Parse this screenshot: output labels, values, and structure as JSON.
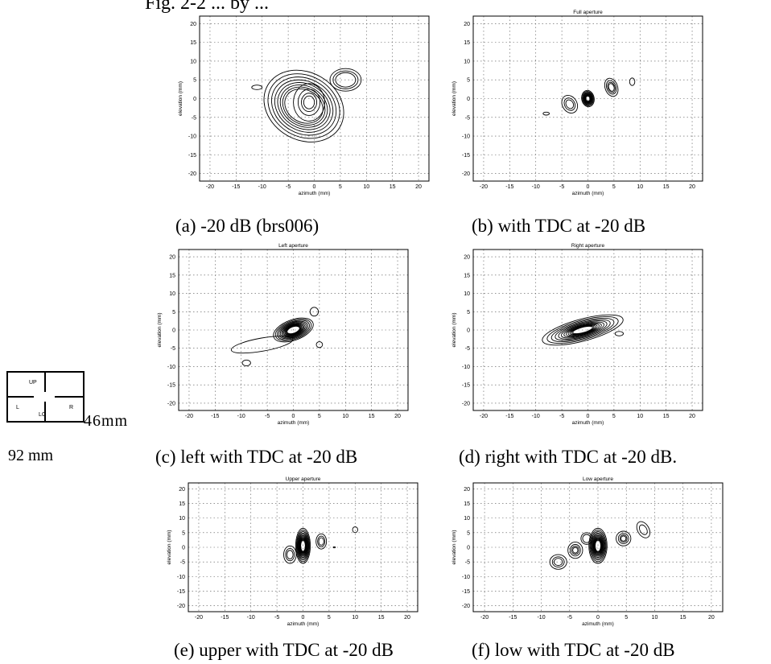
{
  "header_partial": "Fig. 2-2 ... by ...",
  "panels": [
    {
      "id": "a",
      "title": "",
      "caption": "(a) -20 dB (brs006)",
      "xlabel": "azimuth (mm)",
      "ylabel": "elevation (mm)"
    },
    {
      "id": "b",
      "title": "Full aperture",
      "caption": "(b) with TDC at -20 dB",
      "xlabel": "azimuth (mm)",
      "ylabel": "elevation (mm)"
    },
    {
      "id": "c",
      "title": "Left aperture",
      "caption": "(c) left with TDC at -20 dB",
      "xlabel": "azimuth (mm)",
      "ylabel": "elevation (mm)"
    },
    {
      "id": "d",
      "title": "Right aperture",
      "caption": "(d)  right with TDC at -20 dB.",
      "xlabel": "azimuth (mm)",
      "ylabel": "elevation (mm)"
    },
    {
      "id": "e",
      "title": "Upper aperture",
      "caption": "(e)  upper with TDC at -20 dB",
      "xlabel": "azimuth (mm)",
      "ylabel": "elevation (mm)"
    },
    {
      "id": "f",
      "title": "Low aperture",
      "caption": "(f) low with TDC at -20 dB",
      "xlabel": "azimuth (mm)",
      "ylabel": "elevation (mm)"
    }
  ],
  "axes": {
    "xticks": [
      "-20",
      "-15",
      "-10",
      "-5",
      "0",
      "5",
      "10",
      "15",
      "20"
    ],
    "yticks": [
      "20",
      "15",
      "10",
      "5",
      "0",
      "-5",
      "-10",
      "-15",
      "-20"
    ],
    "range": [
      -22,
      22
    ]
  },
  "aperture_diagram": {
    "labels": {
      "up": "UP",
      "left": "L",
      "right": "R",
      "lower": "LC"
    },
    "height_label": "46mm",
    "width_label": "92 mm"
  }
}
